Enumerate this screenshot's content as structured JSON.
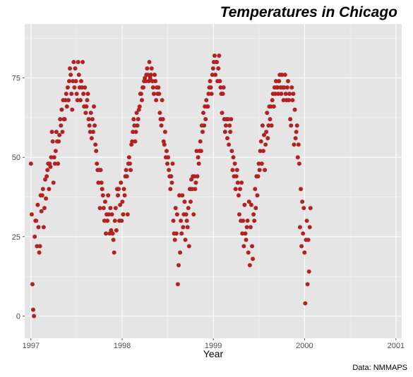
{
  "chart_data": {
    "type": "scatter",
    "title": "Temperatures in Chicago",
    "xlabel": "Year",
    "ylabel": "",
    "caption": "Data: NMMAPS",
    "x_ticks": [
      "1997",
      "1998",
      "1999",
      "2000",
      "2001"
    ],
    "y_ticks": [
      0,
      25,
      50,
      75
    ],
    "xlim": [
      "1996-12-07",
      "2001-01-24"
    ],
    "ylim": [
      -7,
      92
    ],
    "grid": true,
    "legend": "none",
    "point_color": "#B22222",
    "panel_background": "#E5E5E5",
    "series": [
      {
        "x_start": "1997-01-01",
        "x_step_days": 3,
        "y": [
          48,
          32,
          10,
          2,
          0,
          25,
          30,
          30,
          22,
          35,
          28,
          20,
          22,
          38,
          33,
          38,
          40,
          28,
          34,
          43,
          37,
          44,
          46,
          48,
          40,
          48,
          47,
          50,
          58,
          55,
          42,
          50,
          48,
          52,
          58,
          55,
          48,
          55,
          57,
          62,
          60,
          65,
          58,
          68,
          62,
          62,
          68,
          70,
          66,
          72,
          68,
          74,
          78,
          76,
          70,
          65,
          74,
          80,
          72,
          78,
          74,
          70,
          68,
          80,
          76,
          72,
          68,
          74,
          72,
          80,
          70,
          66,
          72,
          64,
          66,
          68,
          70,
          62,
          60,
          58,
          64,
          56,
          62,
          58,
          66,
          60,
          54,
          52,
          48,
          46,
          42,
          46,
          34,
          46,
          42,
          40,
          38,
          34,
          30,
          36,
          26,
          32,
          30,
          38,
          32,
          26,
          34,
          27,
          32,
          26,
          24,
          20,
          30,
          34,
          27,
          40,
          38,
          40,
          30,
          35,
          42,
          30,
          36,
          32,
          40,
          38,
          44,
          46,
          44,
          32,
          48,
          50,
          48,
          46,
          54,
          55,
          58,
          62,
          60,
          55,
          58,
          64,
          60,
          62,
          65,
          66,
          70,
          70,
          68,
          72,
          72,
          74,
          75,
          74,
          76,
          78,
          76,
          74,
          80,
          75,
          76,
          78,
          74,
          72,
          70,
          76,
          74,
          68,
          72,
          70,
          72,
          70,
          64,
          62,
          60,
          68,
          62,
          55,
          54,
          58,
          50,
          52,
          48,
          50,
          46,
          44,
          40,
          44,
          42,
          48,
          30,
          26,
          24,
          34,
          26,
          32,
          10,
          16,
          38,
          20,
          30,
          26,
          38,
          28,
          32,
          36,
          24,
          32,
          30,
          28,
          34,
          22,
          40,
          36,
          43,
          40,
          44,
          32,
          44,
          40,
          42,
          52,
          44,
          50,
          48,
          52,
          55,
          52,
          60,
          58,
          64,
          60,
          66,
          62,
          68,
          66,
          66,
          70,
          72,
          74,
          72,
          70,
          76,
          78,
          80,
          82,
          76,
          80,
          80,
          74,
          78,
          82,
          74,
          72,
          70,
          64,
          70,
          72,
          62,
          58,
          60,
          62,
          56,
          62,
          54,
          60,
          58,
          62,
          52,
          46,
          50,
          44,
          48,
          40,
          44,
          46,
          42,
          38,
          32,
          40,
          30,
          42,
          26,
          30,
          22,
          35,
          26,
          24,
          28,
          30,
          20,
          36,
          16,
          28,
          35,
          22,
          18,
          32,
          30,
          40,
          34,
          44,
          38,
          44,
          48,
          46,
          52,
          55,
          48,
          60,
          52,
          57,
          46,
          54,
          58,
          64,
          56,
          60,
          66,
          62,
          66,
          60,
          68,
          70,
          66,
          72,
          70,
          74,
          72,
          72,
          70,
          74,
          76,
          72,
          70,
          76,
          72,
          68,
          72,
          76,
          70,
          68,
          72,
          74,
          68,
          70,
          62,
          60,
          72,
          68,
          70,
          54,
          65,
          56,
          58,
          60,
          50,
          54,
          48,
          28,
          40,
          22,
          36,
          26,
          34,
          20,
          4,
          24,
          30,
          10,
          24,
          14,
          28,
          34
        ],
        "y_series_name": ""
      }
    ]
  }
}
